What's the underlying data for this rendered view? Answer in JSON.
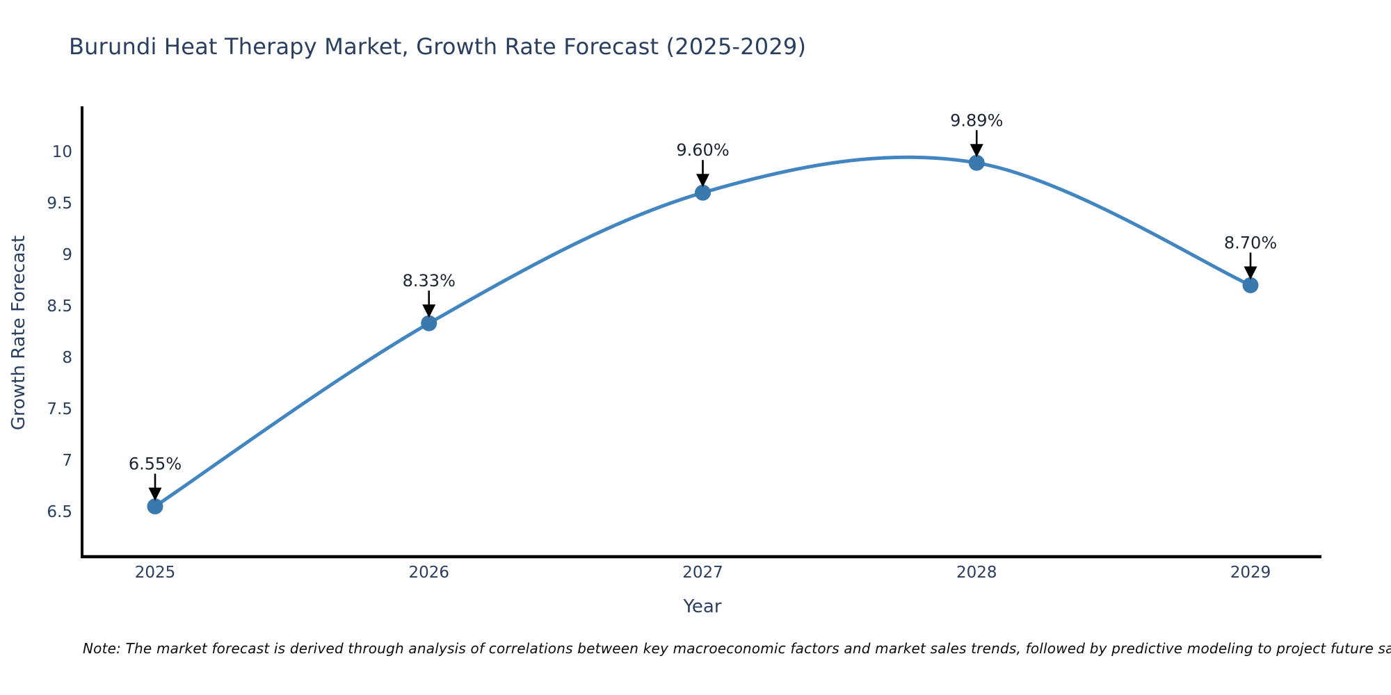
{
  "title": "Burundi Heat Therapy Market, Growth Rate Forecast (2025-2029)",
  "note": "Note: The market forecast is derived through analysis of correlations between key macroeconomic factors and market sales trends, followed by predictive modeling to project future sales",
  "chart_data": {
    "type": "line",
    "title": "Burundi Heat Therapy Market, Growth Rate Forecast (2025-2029)",
    "xlabel": "Year",
    "ylabel": "Growth Rate Forecast",
    "categories": [
      "2025",
      "2026",
      "2027",
      "2028",
      "2029"
    ],
    "values": [
      6.55,
      8.33,
      9.6,
      9.89,
      8.7
    ],
    "point_labels": [
      "6.55%",
      "8.33%",
      "9.60%",
      "9.89%",
      "8.70%"
    ],
    "yticks": [
      6.5,
      7,
      7.5,
      8,
      8.5,
      9,
      9.5,
      10
    ],
    "ylim": [
      6.06,
      10.43
    ],
    "grid": false,
    "legend": false,
    "line_smooth": true,
    "line_color": "#4186c0",
    "marker_color": "#3a79ae",
    "axis_color": "#000000",
    "annotation_arrow_color": "#000000"
  }
}
